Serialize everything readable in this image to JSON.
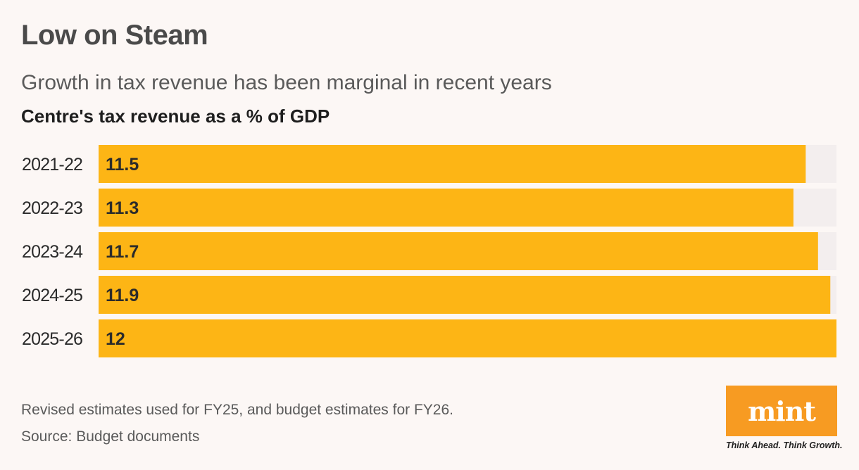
{
  "header": {
    "title": "Low on Steam",
    "subtitle": "Growth in tax revenue has been marginal in recent years"
  },
  "chart_data": {
    "type": "bar",
    "orientation": "horizontal",
    "title": "Centre's tax revenue as a % of GDP",
    "categories": [
      "2021-22",
      "2022-23",
      "2023-24",
      "2024-25",
      "2025-26"
    ],
    "values": [
      11.5,
      11.3,
      11.7,
      11.9,
      12
    ],
    "value_labels": [
      "11.5",
      "11.3",
      "11.7",
      "11.9",
      "12"
    ],
    "xlim": [
      0,
      12
    ],
    "bar_color": "#fdb515",
    "track_color": "#f3eeee",
    "grid": false,
    "xlabel": "",
    "ylabel": ""
  },
  "footer": {
    "note": "Revised estimates used for FY25, and budget estimates for FY26.",
    "source": "Source: Budget documents"
  },
  "brand": {
    "logo_text": "mint",
    "tagline": "Think Ahead. Think Growth.",
    "logo_color": "#f79b22"
  }
}
